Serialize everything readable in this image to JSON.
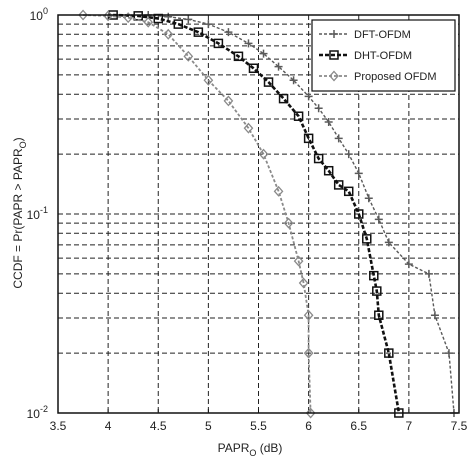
{
  "chart_data": {
    "type": "line",
    "xlabel": "PAPR",
    "xlabel_sub": "O",
    "xlabel_unit": " (dB)",
    "ylabel": "CCDF = Pr(PAPR > PAPR",
    "ylabel_sub": "O",
    "ylabel_end": ")",
    "xlim": [
      3.5,
      7.5
    ],
    "ylim": [
      0.01,
      1
    ],
    "yscale": "log",
    "grid": true,
    "legend_position": "top-right",
    "x_ticks": [
      "3.5",
      "4",
      "4.5",
      "5",
      "5.5",
      "6",
      "6.5",
      "7",
      "7.5"
    ],
    "y_ticks": [
      {
        "value": 1,
        "base": "10",
        "exp": "0"
      },
      {
        "value": 0.1,
        "base": "10",
        "exp": "-1"
      },
      {
        "value": 0.01,
        "base": "10",
        "exp": "-2"
      }
    ],
    "series": [
      {
        "name": "DFT-OFDM",
        "color": "#5a5a5a",
        "marker": "plus",
        "x": [
          4.4,
          4.6,
          4.8,
          5.0,
          5.2,
          5.4,
          5.55,
          5.7,
          5.85,
          6.0,
          6.1,
          6.2,
          6.3,
          6.4,
          6.5,
          6.6,
          6.7,
          6.8,
          7.0,
          7.2,
          7.26,
          7.4,
          7.45
        ],
        "y": [
          1.0,
          0.98,
          0.95,
          0.9,
          0.82,
          0.72,
          0.64,
          0.55,
          0.47,
          0.39,
          0.34,
          0.29,
          0.24,
          0.2,
          0.16,
          0.12,
          0.094,
          0.072,
          0.056,
          0.05,
          0.031,
          0.02,
          0.01
        ]
      },
      {
        "name": "DHT-OFDM",
        "color": "#111111",
        "marker": "square",
        "x": [
          4.05,
          4.3,
          4.5,
          4.7,
          4.9,
          5.1,
          5.3,
          5.45,
          5.6,
          5.75,
          5.9,
          6.0,
          6.1,
          6.2,
          6.3,
          6.4,
          6.5,
          6.58,
          6.65,
          6.68,
          6.7,
          6.8,
          6.9
        ],
        "y": [
          1.0,
          0.99,
          0.96,
          0.9,
          0.82,
          0.72,
          0.62,
          0.54,
          0.46,
          0.38,
          0.31,
          0.24,
          0.19,
          0.165,
          0.14,
          0.13,
          0.1,
          0.075,
          0.049,
          0.041,
          0.031,
          0.02,
          0.01
        ]
      },
      {
        "name": "Proposed OFDM",
        "color": "#8a8a8a",
        "marker": "diamond",
        "x": [
          3.75,
          4.0,
          4.2,
          4.4,
          4.6,
          4.8,
          5.0,
          5.2,
          5.4,
          5.55,
          5.7,
          5.8,
          5.9,
          5.95,
          6.0,
          6.0,
          6.02
        ],
        "y": [
          1.0,
          0.99,
          0.97,
          0.92,
          0.8,
          0.62,
          0.47,
          0.37,
          0.27,
          0.2,
          0.13,
          0.09,
          0.058,
          0.045,
          0.031,
          0.02,
          0.01
        ]
      }
    ]
  }
}
